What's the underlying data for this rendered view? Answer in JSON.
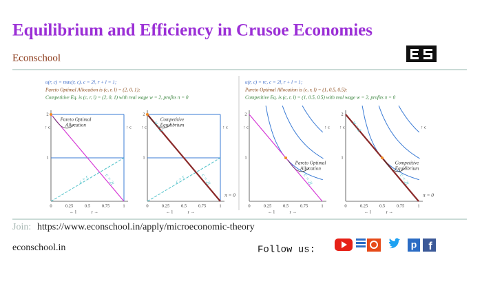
{
  "header": {
    "title": "Equilibrium and Efficiency in Crusoe Economies",
    "subtitle": "Econschool"
  },
  "panels": [
    {
      "lines": [
        "u(r, c) = max(r, c),  c = 2l,  r + l = 1;",
        "Pareto Optimal Allocation is (c, r, l) = (2, 0, 1);",
        "Competitive Eq.  is (c, r, l) = (2, 0, 1) with real wage w = 2,  profits π = 0"
      ],
      "plots": [
        {
          "annotation": [
            "Pareto Optimal",
            "Allocation"
          ],
          "labels": [
            "c = r",
            "c = 2l"
          ]
        },
        {
          "annotation": [
            "Competitive",
            "Equilibrium"
          ],
          "labels": [
            "w = 2",
            "c = r",
            "c = 2l",
            "π = 0"
          ]
        }
      ]
    },
    {
      "lines": [
        "u(r, c) = rc,  c = 2l,  r + l = 1;",
        "Pareto Optimal Allocation is (c, r, l) = (1, 0.5, 0.5);",
        "Competitive Eq.  is (c, r, l) = (1, 0.5, 0.5) with real wage w = 2,  profits π = 0"
      ],
      "plots": [
        {
          "annotation": [
            "Pareto Optimal",
            "Allocation"
          ],
          "labels": [
            "c = 2l"
          ]
        },
        {
          "annotation": [
            "Competitive",
            "Equilibrium"
          ],
          "labels": [
            "w = 2",
            "c = 2l",
            "π = 0"
          ]
        }
      ]
    }
  ],
  "axis": {
    "y_ticks": [
      "2",
      "1"
    ],
    "x_ticks": [
      "0",
      "0.25",
      "0.5",
      "0.75",
      "1"
    ],
    "l_label": "← l",
    "r_label": "r →",
    "c_label": "↑ c"
  },
  "footer": {
    "join": "Join:",
    "url": "https://www.econschool.in/apply/microeconomic-theory",
    "site": "econschool.in",
    "follow": "Follow us:"
  }
}
